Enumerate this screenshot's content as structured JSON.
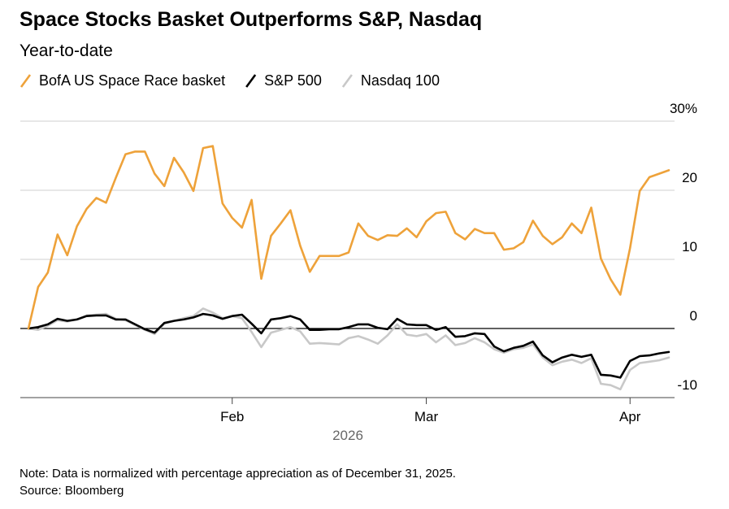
{
  "chart_data": {
    "type": "line",
    "title": "Space Stocks Basket Outperforms S&P, Nasdaq",
    "subtitle": "Year-to-date",
    "x_label": "2026",
    "note": "Note: Data is normalized with percentage appreciation as of December 31, 2025.",
    "source": "Source: Bloomberg",
    "categories": [
      null,
      null,
      null,
      null,
      null,
      null,
      null,
      null,
      null,
      null,
      null,
      null,
      null,
      null,
      null,
      null,
      null,
      null,
      null,
      null,
      null,
      "Feb",
      null,
      null,
      null,
      null,
      null,
      null,
      null,
      null,
      null,
      null,
      null,
      null,
      null,
      null,
      null,
      null,
      null,
      null,
      null,
      "Mar",
      null,
      null,
      null,
      null,
      null,
      null,
      null,
      null,
      null,
      null,
      null,
      null,
      null,
      null,
      null,
      null,
      null,
      null,
      null,
      null,
      "Apr",
      null,
      null,
      null,
      null
    ],
    "xticks": [
      21,
      41,
      62
    ],
    "series": [
      {
        "name": "BofA US Space Race basket",
        "color": "#eea23a",
        "values": [
          0,
          6.0,
          8.1,
          13.6,
          10.6,
          14.8,
          17.3,
          18.9,
          18.2,
          21.8,
          25.2,
          25.6,
          25.6,
          22.4,
          20.6,
          24.7,
          22.6,
          19.9,
          26.1,
          26.4,
          18.1,
          16.0,
          14.6,
          18.6,
          7.2,
          13.4,
          15.2,
          17.1,
          12.0,
          8.2,
          10.5,
          10.5,
          10.5,
          11.0,
          15.2,
          13.4,
          12.8,
          13.5,
          13.4,
          14.5,
          13.2,
          15.5,
          16.7,
          16.9,
          13.8,
          12.9,
          14.4,
          13.8,
          13.8,
          11.4,
          11.6,
          12.5,
          15.6,
          13.4,
          12.2,
          13.2,
          15.2,
          13.8,
          17.5,
          10.1,
          7.1,
          4.9,
          11.6,
          19.9,
          21.9,
          22.4,
          22.9
        ]
      },
      {
        "name": "S&P 500",
        "color": "#000000",
        "values": [
          0,
          0.2,
          0.6,
          1.4,
          1.1,
          1.3,
          1.8,
          1.9,
          1.9,
          1.3,
          1.3,
          0.6,
          -0.1,
          -0.6,
          0.8,
          1.1,
          1.3,
          1.6,
          2.1,
          1.9,
          1.4,
          1.8,
          2.0,
          0.7,
          -0.7,
          1.3,
          1.5,
          1.8,
          1.3,
          -0.2,
          -0.2,
          -0.1,
          -0.1,
          0.2,
          0.6,
          0.6,
          0.1,
          -0.1,
          1.4,
          0.6,
          0.5,
          0.5,
          -0.2,
          0.2,
          -1.2,
          -1.1,
          -0.7,
          -0.8,
          -2.6,
          -3.3,
          -2.8,
          -2.5,
          -1.9,
          -3.9,
          -4.9,
          -4.2,
          -3.8,
          -4.1,
          -3.8,
          -6.7,
          -6.8,
          -7.1,
          -4.7,
          -4.0,
          -3.9,
          -3.6,
          -3.4
        ]
      },
      {
        "name": "Nasdaq 100",
        "color": "#c8c8c8",
        "values": [
          0,
          -0.2,
          0.4,
          1.2,
          1.0,
          1.3,
          1.9,
          2.0,
          2.1,
          1.4,
          1.2,
          0.5,
          -0.2,
          -0.8,
          0.7,
          1.1,
          1.5,
          1.8,
          2.9,
          2.3,
          1.5,
          1.8,
          1.5,
          -0.5,
          -2.7,
          -0.6,
          -0.2,
          0.2,
          -0.4,
          -2.2,
          -2.1,
          -2.2,
          -2.3,
          -1.4,
          -1.1,
          -1.6,
          -2.2,
          -1.0,
          0.6,
          -0.9,
          -1.1,
          -0.8,
          -2.0,
          -1.0,
          -2.4,
          -2.1,
          -1.4,
          -2.0,
          -3.0,
          -3.5,
          -3.0,
          -2.8,
          -2.3,
          -4.2,
          -5.3,
          -4.8,
          -4.5,
          -5.0,
          -4.3,
          -8.0,
          -8.2,
          -8.8,
          -6.0,
          -5.0,
          -4.8,
          -4.6,
          -4.2
        ]
      }
    ],
    "ylim": [
      -10,
      30
    ],
    "yticks": [
      {
        "value": 30,
        "label": "30%"
      },
      20,
      10,
      0,
      -10
    ],
    "grid": true
  }
}
